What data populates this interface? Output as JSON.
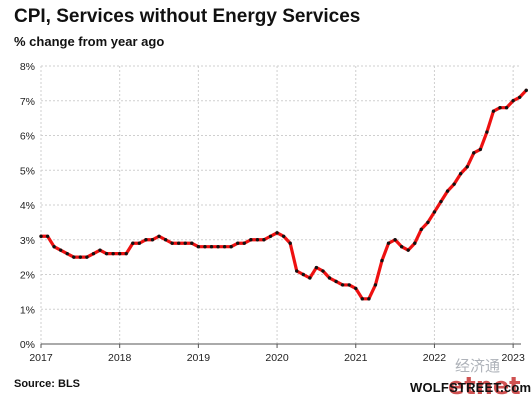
{
  "chart_data": {
    "type": "line",
    "title": "CPI, Services without Energy Services",
    "subtitle": "% change from year ago",
    "source": "Source: BLS",
    "brand": "WOLFSTREET.com",
    "watermark_top": "经济通",
    "watermark_bottom": "etnet",
    "line_color": "#ee1111",
    "marker_color": "#111111",
    "grid": true,
    "xlim": [
      2017.0,
      2023.1
    ],
    "ylim": [
      0,
      8
    ],
    "x_ticks": [
      2017,
      2018,
      2019,
      2020,
      2021,
      2022,
      2023
    ],
    "x_tick_labels": [
      "2017",
      "2018",
      "2019",
      "2020",
      "2021",
      "2022",
      "2023"
    ],
    "y_ticks": [
      0,
      1,
      2,
      3,
      4,
      5,
      6,
      7,
      8
    ],
    "y_tick_labels": [
      "0%",
      "1%",
      "2%",
      "3%",
      "4%",
      "5%",
      "6%",
      "7%",
      "8%"
    ],
    "series": [
      {
        "start": "2017-01",
        "values": [
          3.1,
          3.1,
          2.8,
          2.7,
          2.6,
          2.5,
          2.5,
          2.5,
          2.6,
          2.7,
          2.6,
          2.6,
          2.6,
          2.6,
          2.9,
          2.9,
          3.0,
          3.0,
          3.1,
          3.0,
          2.9,
          2.9,
          2.9,
          2.9,
          2.8,
          2.8,
          2.8,
          2.8,
          2.8,
          2.8,
          2.9,
          2.9,
          3.0,
          3.0,
          3.0,
          3.1,
          3.2,
          3.1,
          2.9,
          2.1,
          2.0,
          1.9,
          2.2,
          2.1,
          1.9,
          1.8,
          1.7,
          1.7,
          1.6,
          1.3,
          1.3,
          1.7,
          2.4,
          2.9,
          3.0,
          2.8,
          2.7,
          2.9,
          3.3,
          3.5,
          3.8,
          4.1,
          4.4,
          4.6,
          4.9,
          5.1,
          5.5,
          5.6,
          6.1,
          6.7,
          6.8,
          6.8,
          7.0,
          7.1,
          7.3
        ]
      }
    ]
  }
}
